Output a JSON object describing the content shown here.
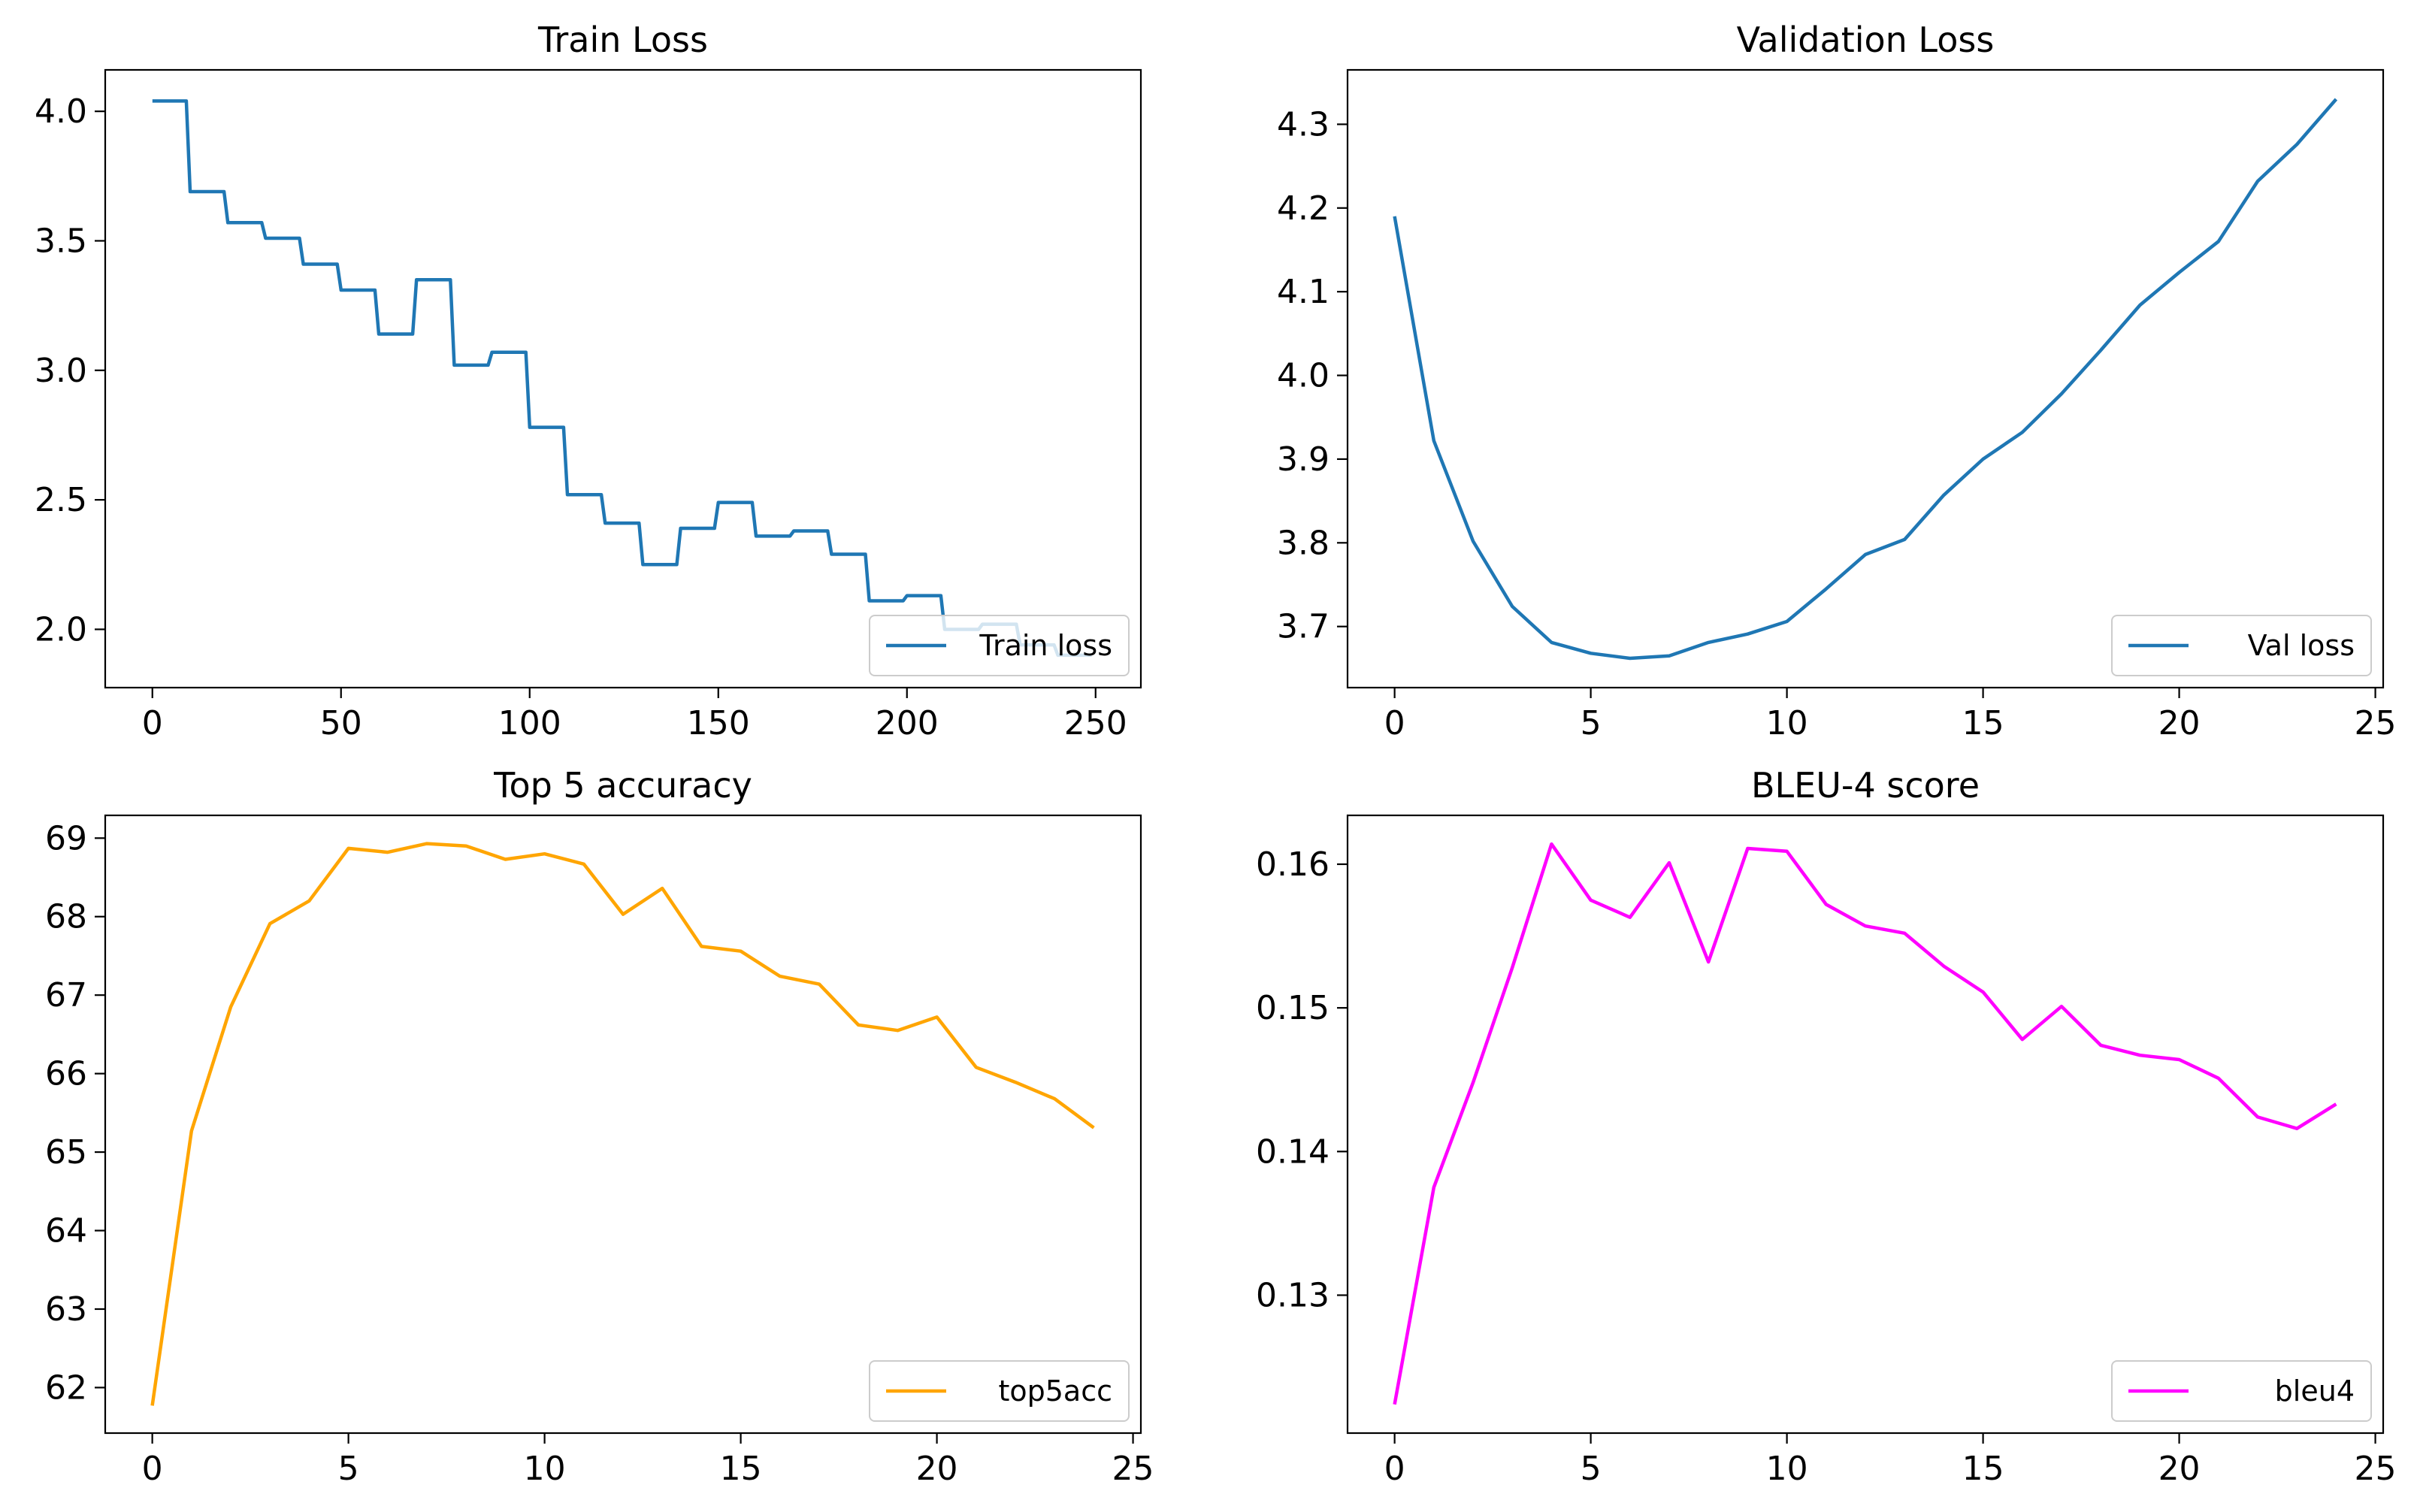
{
  "chart_data": [
    {
      "type": "line",
      "title": "Train Loss",
      "xlabel": "",
      "ylabel": "",
      "xlim": [
        -12.5,
        262
      ],
      "ylim": [
        1.775,
        4.16
      ],
      "xticks": [
        0,
        50,
        100,
        150,
        200,
        250
      ],
      "yticks": [
        2.0,
        2.5,
        3.0,
        3.5,
        4.0
      ],
      "yformat": 1,
      "grid": false,
      "legend": {
        "location": "lower-right"
      },
      "series": [
        {
          "name": "Train loss",
          "color": "#1f77b4",
          "steps": [
            [
              0,
              4.04
            ],
            [
              9,
              4.04
            ],
            [
              10,
              3.69
            ],
            [
              19,
              3.69
            ],
            [
              20,
              3.57
            ],
            [
              29,
              3.57
            ],
            [
              30,
              3.51
            ],
            [
              39,
              3.51
            ],
            [
              40,
              3.41
            ],
            [
              49,
              3.41
            ],
            [
              50,
              3.31
            ],
            [
              59,
              3.31
            ],
            [
              60,
              3.14
            ],
            [
              69,
              3.14
            ],
            [
              70,
              3.35
            ],
            [
              79,
              3.35
            ],
            [
              80,
              3.02
            ],
            [
              89,
              3.02
            ],
            [
              90,
              3.07
            ],
            [
              99,
              3.07
            ],
            [
              100,
              2.78
            ],
            [
              109,
              2.78
            ],
            [
              110,
              2.52
            ],
            [
              119,
              2.52
            ],
            [
              120,
              2.41
            ],
            [
              129,
              2.41
            ],
            [
              130,
              2.25
            ],
            [
              139,
              2.25
            ],
            [
              140,
              2.39
            ],
            [
              149,
              2.39
            ],
            [
              150,
              2.49
            ],
            [
              159,
              2.49
            ],
            [
              160,
              2.36
            ],
            [
              169,
              2.36
            ],
            [
              170,
              2.38
            ],
            [
              179,
              2.38
            ],
            [
              180,
              2.29
            ],
            [
              189,
              2.29
            ],
            [
              190,
              2.11
            ],
            [
              199,
              2.11
            ],
            [
              200,
              2.13
            ],
            [
              209,
              2.13
            ],
            [
              210,
              2.0
            ],
            [
              219,
              2.0
            ],
            [
              220,
              2.02
            ],
            [
              229,
              2.02
            ],
            [
              230,
              1.94
            ],
            [
              239,
              1.94
            ],
            [
              240,
              1.9
            ],
            [
              249,
              1.9
            ]
          ]
        }
      ]
    },
    {
      "type": "line",
      "title": "Validation Loss",
      "xlabel": "",
      "ylabel": "",
      "xlim": [
        -1.2,
        25.2
      ],
      "ylim": [
        3.627,
        4.365
      ],
      "xticks": [
        0,
        5,
        10,
        15,
        20,
        25
      ],
      "yticks": [
        3.7,
        3.8,
        3.9,
        4.0,
        4.1,
        4.2,
        4.3
      ],
      "yformat": 1,
      "grid": false,
      "legend": {
        "location": "lower-right"
      },
      "series": [
        {
          "name": "Val loss",
          "color": "#1f77b4",
          "x": [
            0,
            1,
            2,
            3,
            4,
            5,
            6,
            7,
            8,
            9,
            10,
            11,
            12,
            13,
            14,
            15,
            16,
            17,
            18,
            19,
            20,
            21,
            22,
            23,
            24
          ],
          "y": [
            4.19,
            3.922,
            3.802,
            3.724,
            3.681,
            3.668,
            3.662,
            3.665,
            3.681,
            3.691,
            3.706,
            3.745,
            3.786,
            3.804,
            3.857,
            3.9,
            3.932,
            3.978,
            4.03,
            4.084,
            4.123,
            4.16,
            4.232,
            4.276,
            4.33
          ]
        }
      ]
    },
    {
      "type": "line",
      "title": "Top 5 accuracy",
      "xlabel": "",
      "ylabel": "",
      "xlim": [
        -1.2,
        25.2
      ],
      "ylim": [
        61.42,
        69.29
      ],
      "xticks": [
        0,
        5,
        10,
        15,
        20,
        25
      ],
      "yticks": [
        62,
        63,
        64,
        65,
        66,
        67,
        68,
        69
      ],
      "yformat": 0,
      "grid": false,
      "legend": {
        "location": "lower-right"
      },
      "series": [
        {
          "name": "top5acc",
          "color": "#ffa500",
          "x": [
            0,
            1,
            2,
            3,
            4,
            5,
            6,
            7,
            8,
            9,
            10,
            11,
            12,
            13,
            14,
            15,
            16,
            17,
            18,
            19,
            20,
            21,
            22,
            23,
            24
          ],
          "y": [
            61.77,
            65.27,
            66.85,
            67.91,
            68.2,
            68.87,
            68.82,
            68.93,
            68.9,
            68.73,
            68.8,
            68.67,
            68.03,
            68.36,
            67.62,
            67.56,
            67.24,
            67.14,
            66.62,
            66.55,
            66.72,
            66.08,
            65.89,
            65.68,
            65.31
          ]
        }
      ]
    },
    {
      "type": "line",
      "title": "BLEU-4 score",
      "xlabel": "",
      "ylabel": "",
      "xlim": [
        -1.2,
        25.2
      ],
      "ylim": [
        0.1204,
        0.1634
      ],
      "xticks": [
        0,
        5,
        10,
        15,
        20,
        25
      ],
      "yticks": [
        0.13,
        0.14,
        0.15,
        0.16
      ],
      "yformat": 2,
      "grid": false,
      "legend": {
        "location": "lower-right"
      },
      "series": [
        {
          "name": "bleu4",
          "color": "#ff00ff",
          "x": [
            0,
            1,
            2,
            3,
            4,
            5,
            6,
            7,
            8,
            9,
            10,
            11,
            12,
            13,
            14,
            15,
            16,
            17,
            18,
            19,
            20,
            21,
            22,
            23,
            24
          ],
          "y": [
            0.1224,
            0.1375,
            0.1448,
            0.1528,
            0.1614,
            0.1575,
            0.1563,
            0.1601,
            0.1532,
            0.1611,
            0.1609,
            0.1572,
            0.1557,
            0.1552,
            0.1529,
            0.1511,
            0.1478,
            0.1501,
            0.1474,
            0.1467,
            0.1464,
            0.1451,
            0.1424,
            0.1416,
            0.1433
          ]
        }
      ]
    }
  ]
}
